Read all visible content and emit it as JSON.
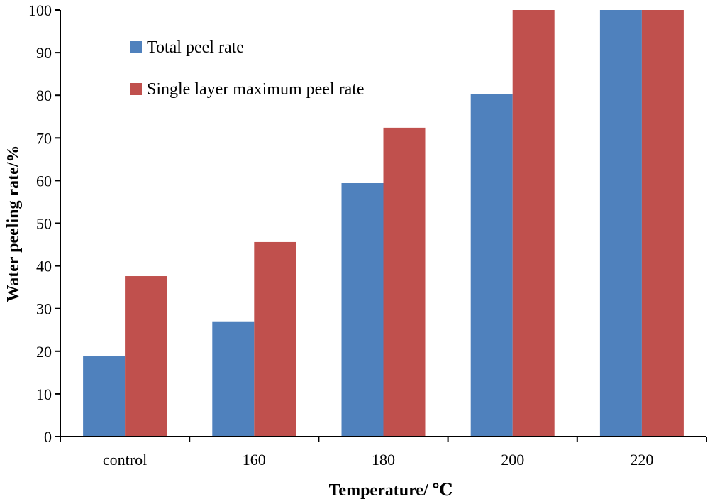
{
  "chart_data": {
    "type": "bar",
    "title": "",
    "xlabel": "Temperature/ ℃",
    "ylabel": "Water peeling rate/%",
    "categories": [
      "control",
      "160",
      "180",
      "200",
      "220"
    ],
    "series": [
      {
        "name": "Total peel rate",
        "color": "#4F81BD",
        "values": [
          18.8,
          27.0,
          59.4,
          80.2,
          100
        ]
      },
      {
        "name": "Single layer maximum peel rate",
        "color": "#C0504D",
        "values": [
          37.6,
          45.6,
          72.4,
          100,
          100
        ]
      }
    ],
    "ylim": [
      0,
      100
    ],
    "yticks": [
      0,
      10,
      20,
      30,
      40,
      50,
      60,
      70,
      80,
      90,
      100
    ],
    "grid": false,
    "legend_position": "top-left"
  }
}
